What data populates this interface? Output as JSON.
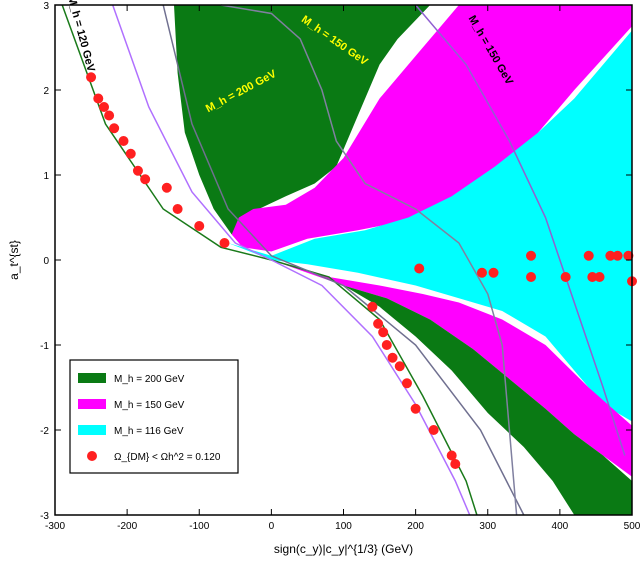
{
  "chart_data": {
    "type": "scatter",
    "xlabel": "sign(c_y)|c_y|^{1/3} (GeV)",
    "ylabel": "a_t^{st}",
    "xlim": [
      -300,
      500
    ],
    "ylim": [
      -3,
      3
    ],
    "xticks": [
      "-300",
      "-200",
      "-100",
      "0",
      "100",
      "200",
      "300",
      "400",
      "500"
    ],
    "yticks": [
      "-3",
      "-2",
      "-1",
      "0",
      "1",
      "2",
      "3"
    ],
    "grid": false,
    "legend_position": "bottom-left",
    "legend": [
      {
        "label": "M_h = 200 GeV",
        "color": "#0a7a14"
      },
      {
        "label": "M_h = 150 GeV",
        "color": "#ff00ff"
      },
      {
        "label": "M_h = 116 GeV",
        "color": "#00ffff"
      },
      {
        "label": "Ω_{DM} < Ωh^2 = 0.120",
        "color": "#ff2020"
      }
    ],
    "curve_labels": [
      {
        "text": "M_h = 200 GeV",
        "color": "#ffff00",
        "x": -40,
        "y": 1.95,
        "angle": -28
      },
      {
        "text": "M_h = 150 GeV",
        "color": "#ffff00",
        "x": 85,
        "y": 2.55,
        "angle": 35
      },
      {
        "text": "M_h = 150 GeV",
        "color": "#000000",
        "x": 300,
        "y": 2.45,
        "angle": 60
      },
      {
        "text": "M_h = 120 GeV",
        "color": "#000000",
        "x": -268,
        "y": 2.65,
        "angle": 75
      }
    ],
    "series": [
      {
        "name": "Ω_{DM} < Ωh^2 = 0.120",
        "color": "#ff2020",
        "points": [
          [
            -250,
            2.15
          ],
          [
            -240,
            1.9
          ],
          [
            -232,
            1.8
          ],
          [
            -225,
            1.7
          ],
          [
            -218,
            1.55
          ],
          [
            -205,
            1.4
          ],
          [
            -195,
            1.25
          ],
          [
            -185,
            1.05
          ],
          [
            -175,
            0.95
          ],
          [
            -145,
            0.85
          ],
          [
            -130,
            0.6
          ],
          [
            -100,
            0.4
          ],
          [
            -65,
            0.2
          ],
          [
            140,
            -0.55
          ],
          [
            148,
            -0.75
          ],
          [
            155,
            -0.85
          ],
          [
            160,
            -1.0
          ],
          [
            168,
            -1.15
          ],
          [
            178,
            -1.25
          ],
          [
            188,
            -1.45
          ],
          [
            200,
            -1.75
          ],
          [
            225,
            -2.0
          ],
          [
            250,
            -2.3
          ],
          [
            255,
            -2.4
          ],
          [
            205,
            -0.1
          ],
          [
            292,
            -0.15
          ],
          [
            308,
            -0.15
          ],
          [
            360,
            0.05
          ],
          [
            360,
            -0.2
          ],
          [
            408,
            -0.2
          ],
          [
            440,
            0.05
          ],
          [
            445,
            -0.2
          ],
          [
            455,
            -0.2
          ],
          [
            470,
            0.05
          ],
          [
            480,
            0.05
          ],
          [
            495,
            0.05
          ],
          [
            500,
            -0.25
          ]
        ]
      }
    ],
    "contours": [
      {
        "name": "M_h = 120 GeV",
        "color": "#1a7a1a",
        "points": [
          [
            -290,
            3.0
          ],
          [
            -230,
            1.6
          ],
          [
            -150,
            0.6
          ],
          [
            -70,
            0.15
          ],
          [
            0,
            0.0
          ],
          [
            80,
            -0.2
          ],
          [
            150,
            -0.7
          ],
          [
            210,
            -1.6
          ],
          [
            270,
            -2.6
          ],
          [
            285,
            -3.0
          ]
        ]
      },
      {
        "name": "M_h = 150 GeV",
        "color": "#b070ff",
        "points": [
          [
            -220,
            3.0
          ],
          [
            -170,
            1.8
          ],
          [
            -110,
            0.8
          ],
          [
            -50,
            0.2
          ],
          [
            0,
            0.0
          ],
          [
            70,
            -0.3
          ],
          [
            140,
            -0.9
          ],
          [
            200,
            -1.7
          ],
          [
            255,
            -2.6
          ],
          [
            275,
            -3.0
          ]
        ]
      },
      {
        "name": "M_h = 200 GeV",
        "color": "#707090",
        "points": [
          [
            -150,
            3.0
          ],
          [
            -110,
            1.6
          ],
          [
            -60,
            0.6
          ],
          [
            0,
            0.05
          ],
          [
            100,
            -0.3
          ],
          [
            200,
            -1.0
          ],
          [
            290,
            -2.0
          ],
          [
            350,
            -3.0
          ]
        ]
      },
      {
        "name": "M_h = 150 GeV",
        "color": "#9060d0",
        "points": [
          [
            200,
            3.0
          ],
          [
            270,
            2.3
          ],
          [
            330,
            1.4
          ],
          [
            380,
            0.5
          ],
          [
            420,
            -0.5
          ],
          [
            460,
            -1.5
          ],
          [
            490,
            -2.3
          ]
        ]
      },
      {
        "name": "M_h = 116 GeV",
        "color": "#8080a0",
        "points": [
          [
            -70,
            3.0
          ],
          [
            0,
            2.9
          ],
          [
            40,
            2.6
          ],
          [
            70,
            2.0
          ],
          [
            90,
            1.4
          ],
          [
            130,
            0.9
          ],
          [
            200,
            0.6
          ],
          [
            260,
            0.2
          ],
          [
            300,
            -0.4
          ],
          [
            320,
            -1.0
          ],
          [
            330,
            -2.0
          ],
          [
            340,
            -3.0
          ]
        ]
      }
    ]
  }
}
